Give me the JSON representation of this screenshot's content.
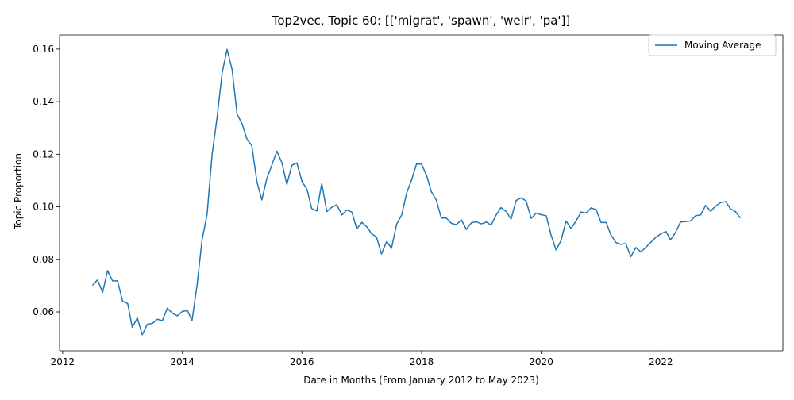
{
  "chart_data": {
    "type": "line",
    "title": "Top2vec, Topic 60: [['migrat', 'spawn', 'weir', 'pa']]",
    "xlabel": "Date in Months (From January 2012 to May 2023)",
    "ylabel": "Topic Proportion",
    "xlim": [
      "2011-12-13",
      "2024-01-16"
    ],
    "ylim": [
      0.0452,
      0.1654
    ],
    "x_ticks": [
      {
        "value": "2012-01-01",
        "label": "2012"
      },
      {
        "value": "2014-01-01",
        "label": "2014"
      },
      {
        "value": "2016-01-01",
        "label": "2016"
      },
      {
        "value": "2018-01-01",
        "label": "2018"
      },
      {
        "value": "2020-01-01",
        "label": "2020"
      },
      {
        "value": "2022-01-01",
        "label": "2022"
      }
    ],
    "y_ticks": [
      {
        "value": 0.06,
        "label": "0.06"
      },
      {
        "value": 0.08,
        "label": "0.08"
      },
      {
        "value": 0.1,
        "label": "0.10"
      },
      {
        "value": 0.12,
        "label": "0.12"
      },
      {
        "value": 0.14,
        "label": "0.14"
      },
      {
        "value": 0.16,
        "label": "0.16"
      }
    ],
    "legend": {
      "position": "top-right",
      "entries": [
        "Moving Average"
      ]
    },
    "grid": false,
    "color": "#1f77b4",
    "series": [
      {
        "name": "Moving Average",
        "x": [
          "2012-07",
          "2012-08",
          "2012-09",
          "2012-10",
          "2012-11",
          "2012-12",
          "2013-01",
          "2013-02",
          "2013-03",
          "2013-04",
          "2013-05",
          "2013-06",
          "2013-07",
          "2013-08",
          "2013-09",
          "2013-10",
          "2013-11",
          "2013-12",
          "2014-01",
          "2014-02",
          "2014-03",
          "2014-04",
          "2014-05",
          "2014-06",
          "2014-07",
          "2014-08",
          "2014-09",
          "2014-10",
          "2014-11",
          "2014-12",
          "2015-01",
          "2015-02",
          "2015-03",
          "2015-04",
          "2015-05",
          "2015-06",
          "2015-07",
          "2015-08",
          "2015-09",
          "2015-10",
          "2015-11",
          "2015-12",
          "2016-01",
          "2016-02",
          "2016-03",
          "2016-04",
          "2016-05",
          "2016-06",
          "2016-07",
          "2016-08",
          "2016-09",
          "2016-10",
          "2016-11",
          "2016-12",
          "2017-01",
          "2017-02",
          "2017-03",
          "2017-04",
          "2017-05",
          "2017-06",
          "2017-07",
          "2017-08",
          "2017-09",
          "2017-10",
          "2017-11",
          "2017-12",
          "2018-01",
          "2018-02",
          "2018-03",
          "2018-04",
          "2018-05",
          "2018-06",
          "2018-07",
          "2018-08",
          "2018-09",
          "2018-10",
          "2018-11",
          "2018-12",
          "2019-01",
          "2019-02",
          "2019-03",
          "2019-04",
          "2019-05",
          "2019-06",
          "2019-07",
          "2019-08",
          "2019-09",
          "2019-10",
          "2019-11",
          "2019-12",
          "2020-01",
          "2020-02",
          "2020-03",
          "2020-04",
          "2020-05",
          "2020-06",
          "2020-07",
          "2020-08",
          "2020-09",
          "2020-10",
          "2020-11",
          "2020-12",
          "2021-01",
          "2021-02",
          "2021-03",
          "2021-04",
          "2021-05",
          "2021-06",
          "2021-07",
          "2021-08",
          "2021-09",
          "2021-10",
          "2021-11",
          "2021-12",
          "2022-01",
          "2022-02",
          "2022-03",
          "2022-04",
          "2022-05",
          "2022-06",
          "2022-07",
          "2022-08",
          "2022-09",
          "2022-10",
          "2022-11",
          "2022-12",
          "2023-01",
          "2023-02",
          "2023-03",
          "2023-04",
          "2023-05"
        ],
        "values": [
          0.0701,
          0.0722,
          0.0674,
          0.0757,
          0.0718,
          0.0718,
          0.0641,
          0.0632,
          0.0541,
          0.0577,
          0.0513,
          0.0553,
          0.0556,
          0.0572,
          0.0567,
          0.0614,
          0.0595,
          0.0585,
          0.0602,
          0.0605,
          0.0567,
          0.0703,
          0.0873,
          0.0972,
          0.1196,
          0.134,
          0.151,
          0.1599,
          0.1521,
          0.1353,
          0.1315,
          0.1255,
          0.1233,
          0.1096,
          0.1026,
          0.1108,
          0.1158,
          0.1212,
          0.1167,
          0.1085,
          0.1158,
          0.1167,
          0.1097,
          0.1066,
          0.0993,
          0.0984,
          0.1089,
          0.0982,
          0.0998,
          0.1008,
          0.0969,
          0.0988,
          0.098,
          0.0916,
          0.0941,
          0.0923,
          0.0898,
          0.0884,
          0.082,
          0.0868,
          0.0842,
          0.0933,
          0.0968,
          0.1051,
          0.1103,
          0.1163,
          0.1162,
          0.1118,
          0.1058,
          0.1025,
          0.0957,
          0.0957,
          0.0937,
          0.0932,
          0.095,
          0.0914,
          0.0939,
          0.0943,
          0.0935,
          0.0942,
          0.093,
          0.0969,
          0.0997,
          0.0982,
          0.0953,
          0.1024,
          0.1034,
          0.1022,
          0.0956,
          0.0976,
          0.097,
          0.0966,
          0.0893,
          0.0836,
          0.0871,
          0.0946,
          0.0917,
          0.0946,
          0.098,
          0.0976,
          0.0996,
          0.0989,
          0.094,
          0.094,
          0.0894,
          0.0864,
          0.0857,
          0.086,
          0.081,
          0.0845,
          0.0828,
          0.0846,
          0.0865,
          0.0884,
          0.0897,
          0.0906,
          0.0874,
          0.0903,
          0.0942,
          0.0944,
          0.0946,
          0.0966,
          0.0969,
          0.1005,
          0.0983,
          0.1003,
          0.1016,
          0.102,
          0.0993,
          0.0982,
          0.0957
        ]
      }
    ]
  }
}
